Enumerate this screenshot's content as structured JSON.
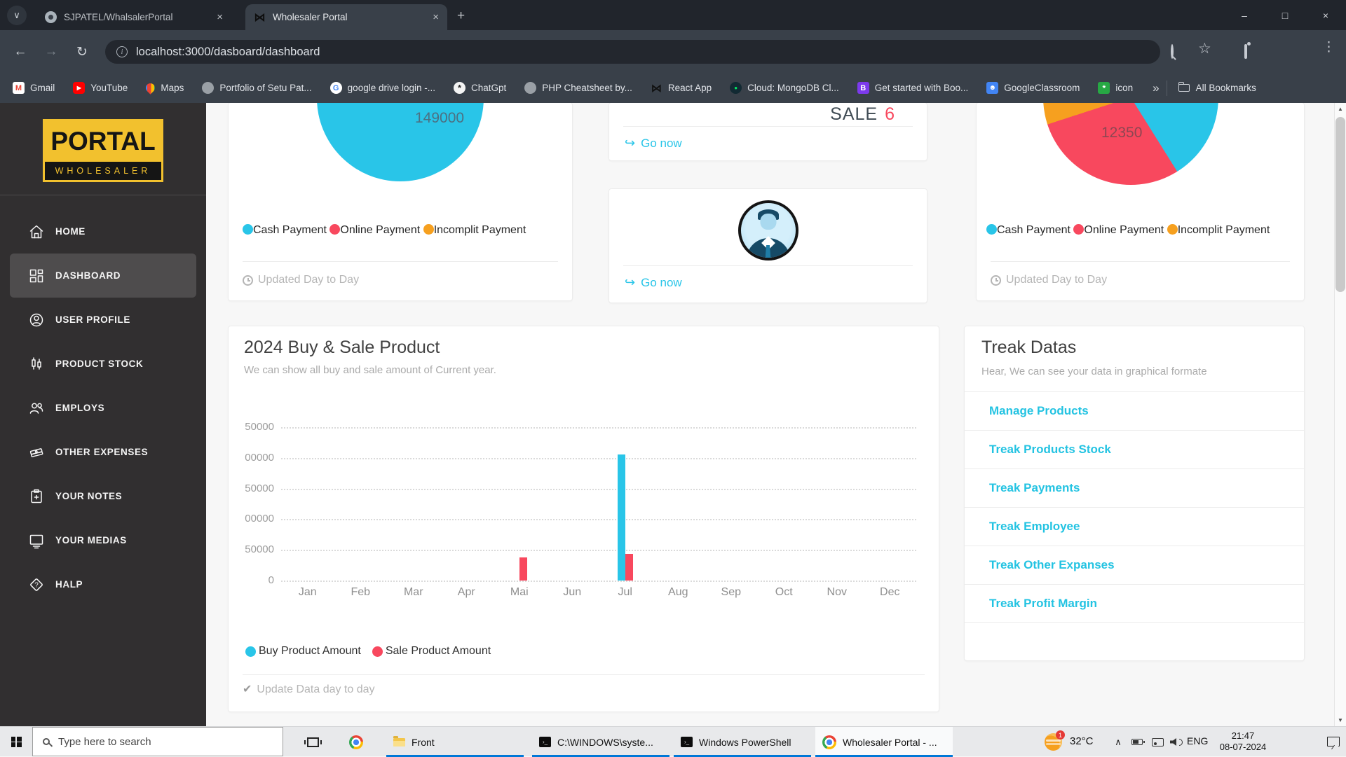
{
  "browser": {
    "tabs": [
      {
        "title": "SJPATEL/WhalsalerPortal",
        "icon": "github",
        "active": false
      },
      {
        "title": "Wholesaler Portal",
        "icon": "bowtie",
        "active": true
      }
    ],
    "url": "localhost:3000/dasboard/dashboard"
  },
  "bookmarks": {
    "items": [
      {
        "label": "Gmail",
        "icon": "gmail"
      },
      {
        "label": "YouTube",
        "icon": "youtube"
      },
      {
        "label": "Maps",
        "icon": "maps"
      },
      {
        "label": "Portfolio of Setu Pat...",
        "icon": "globe"
      },
      {
        "label": "google drive login -...",
        "icon": "google"
      },
      {
        "label": "ChatGpt",
        "icon": "chatgpt"
      },
      {
        "label": "PHP Cheatsheet by...",
        "icon": "globe"
      },
      {
        "label": "React App",
        "icon": "bowtie"
      },
      {
        "label": "Cloud: MongoDB Cl...",
        "icon": "mongodb"
      },
      {
        "label": "Get started with Boo...",
        "icon": "bootstrap"
      },
      {
        "label": "GoogleClassroom",
        "icon": "classroom"
      },
      {
        "label": "icon",
        "icon": "green"
      }
    ],
    "overflow": "»",
    "all_label": "All Bookmarks"
  },
  "sidebar": {
    "logo_top": "PORTAL",
    "logo_bottom": "WHOLESALER",
    "items": [
      {
        "label": "HOME",
        "icon": "home",
        "active": false
      },
      {
        "label": "DASHBOARD",
        "icon": "grid",
        "active": true
      },
      {
        "label": "USER PROFILE",
        "icon": "user",
        "active": false
      },
      {
        "label": "PRODUCT STOCK",
        "icon": "stock",
        "active": false
      },
      {
        "label": "EMPLOYS",
        "icon": "people",
        "active": false
      },
      {
        "label": "OTHER EXPENSES",
        "icon": "money",
        "active": false
      },
      {
        "label": "YOUR NOTES",
        "icon": "notes",
        "active": false
      },
      {
        "label": "YOUR MEDIAS",
        "icon": "media",
        "active": false
      },
      {
        "label": "HALP",
        "icon": "help",
        "active": false
      }
    ]
  },
  "cards": {
    "pie_left": {
      "footer": "Updated Day to Day"
    },
    "sale_card": {
      "title": "SALE",
      "count": "6",
      "link": "Go now"
    },
    "profile_card": {
      "link": "Go now"
    },
    "pie_right": {
      "footer": "Updated Day to Day"
    }
  },
  "chart_data": [
    {
      "type": "pie",
      "name": "payments-pie-left",
      "center_label": "149000",
      "legend": [
        "Cash Payment",
        "Online Payment",
        "Incomplit Payment"
      ],
      "colors": [
        "#29c5e8",
        "#f8485e",
        "#f6a01f"
      ],
      "note": "only cyan (Cash Payment) slice visible; circle cut off at top"
    },
    {
      "type": "pie",
      "name": "payments-pie-right",
      "center_label": "12350",
      "legend": [
        "Cash Payment",
        "Online Payment",
        "Incomplit Payment"
      ],
      "colors": [
        "#29c5e8",
        "#f8485e",
        "#f6a01f"
      ],
      "note": "red largest, cyan right, small orange upper-left; circle cut off at top"
    },
    {
      "type": "bar",
      "title": "2024 Buy & Sale Product",
      "subtitle": "We can show all buy and sale amount of Current year.",
      "categories": [
        "Jan",
        "Feb",
        "Mar",
        "Apr",
        "Mai",
        "Jun",
        "Jul",
        "Aug",
        "Sep",
        "Oct",
        "Nov",
        "Dec"
      ],
      "series": [
        {
          "name": "Buy Product Amount",
          "color": "#29c5e8",
          "values": [
            0,
            0,
            0,
            0,
            0,
            0,
            205000,
            0,
            0,
            0,
            0,
            0
          ]
        },
        {
          "name": "Sale Product Amount",
          "color": "#f8485e",
          "values": [
            0,
            0,
            0,
            0,
            38000,
            0,
            43000,
            0,
            0,
            0,
            0,
            0
          ]
        }
      ],
      "ylim": [
        0,
        250000
      ],
      "ytick_labels_displayed": [
        "50000",
        "00000",
        "50000",
        "00000",
        "50000",
        "0"
      ],
      "grid": true,
      "legend_position": "bottom",
      "footer": "Update Data day to day"
    }
  ],
  "treak": {
    "title": "Treak Datas",
    "subtitle": "Hear, We can see your data in graphical formate",
    "links": [
      "Manage Products",
      "Treak Products Stock",
      "Treak Payments",
      "Treak Employee",
      "Treak Other Expanses",
      "Treak Profit Margin"
    ]
  },
  "taskbar": {
    "search_placeholder": "Type here to search",
    "apps": [
      {
        "label": "Front",
        "icon": "folder",
        "active": false
      },
      {
        "label": "C:\\WINDOWS\\syste...",
        "icon": "cmd",
        "active": false
      },
      {
        "label": "Windows PowerShell",
        "icon": "cmd",
        "active": false
      },
      {
        "label": "Wholesaler Portal - ...",
        "icon": "chrome",
        "active": true
      }
    ],
    "tray": {
      "temperature": "32°C",
      "weather_badge": "1",
      "language": "ENG",
      "time": "21:47",
      "date": "08-07-2024"
    }
  },
  "theme": {
    "accent_cyan": "#29c5e8",
    "accent_red": "#f8485e",
    "accent_orange": "#f6a01f",
    "sidebar_yellow": "#f2c12e",
    "taskbar_underline_blue": "#0078d7"
  }
}
